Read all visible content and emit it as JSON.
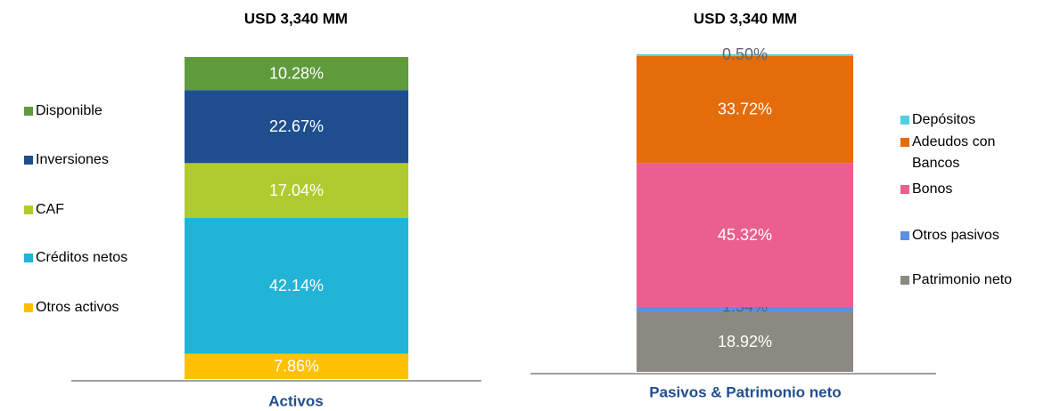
{
  "chart_data": [
    {
      "type": "bar",
      "stacked": true,
      "title": "USD 3,340 MM",
      "categories": [
        "Activos"
      ],
      "ylim": [
        0,
        100
      ],
      "series": [
        {
          "name": "Disponible",
          "color": "#5f9a3c",
          "values": [
            10.28
          ],
          "value_labels": [
            "10.28%"
          ]
        },
        {
          "name": "Inversiones",
          "color": "#1f4e8f",
          "values": [
            22.67
          ],
          "value_labels": [
            "22.67%"
          ]
        },
        {
          "name": "CAF",
          "color": "#b0cb2f",
          "values": [
            17.04
          ],
          "value_labels": [
            "17.04%"
          ]
        },
        {
          "name": "Créditos netos",
          "color": "#22b4d6",
          "values": [
            42.14
          ],
          "value_labels": [
            "42.14%"
          ]
        },
        {
          "name": "Otros activos",
          "color": "#ffc000",
          "values": [
            7.86
          ],
          "value_labels": [
            "7.86%"
          ]
        }
      ],
      "legend": "left"
    },
    {
      "type": "bar",
      "stacked": true,
      "title": "USD 3,340 MM",
      "categories": [
        "Pasivos & Patrimonio neto"
      ],
      "ylim": [
        0,
        100
      ],
      "series": [
        {
          "name": "Depósitos",
          "color": "#4fd0e0",
          "values": [
            0.5
          ],
          "value_labels": [
            "0.50%"
          ]
        },
        {
          "name": "Adeudos con Bancos",
          "color": "#e46c0a",
          "values": [
            33.72
          ],
          "value_labels": [
            "33.72%"
          ]
        },
        {
          "name": "Bonos",
          "color": "#ea5f8f",
          "values": [
            45.32
          ],
          "value_labels": [
            "45.32%"
          ]
        },
        {
          "name": "Otros pasivos",
          "color": "#5b8fdf",
          "values": [
            1.54
          ],
          "value_labels": [
            "1.54%"
          ]
        },
        {
          "name": "Patrimonio neto",
          "color": "#8c8a80",
          "values": [
            18.92
          ],
          "value_labels": [
            "18.92%"
          ]
        }
      ],
      "legend": "right"
    }
  ]
}
